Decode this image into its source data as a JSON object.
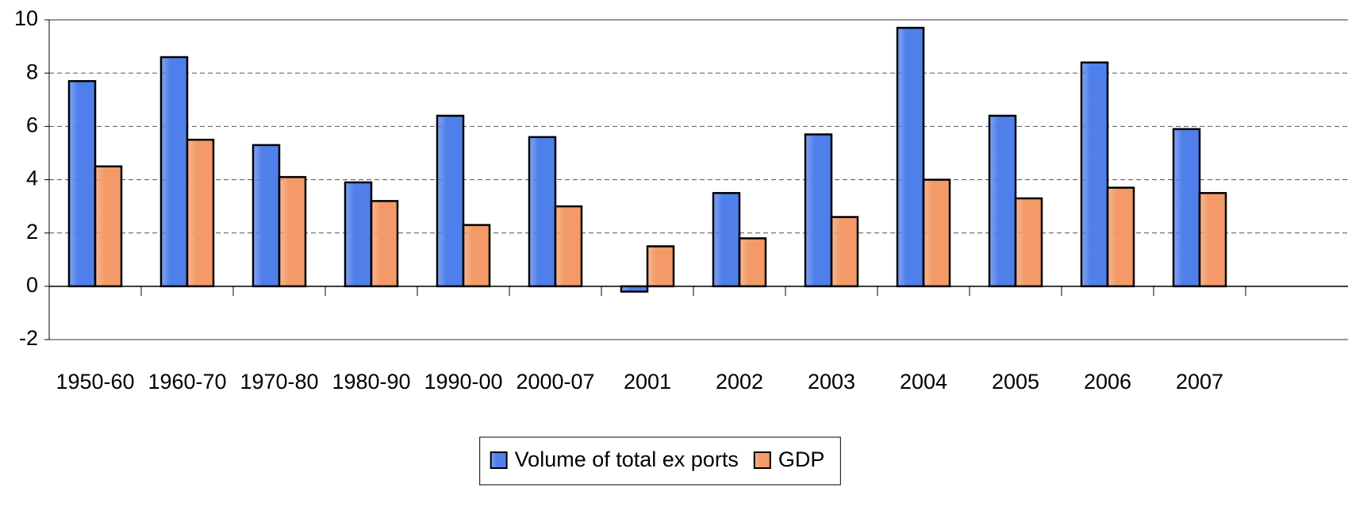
{
  "chart_data": {
    "type": "bar",
    "categories": [
      "1950-60",
      "1960-70",
      "1970-80",
      "1980-90",
      "1990-00",
      "2000-07",
      "2001",
      "2002",
      "2003",
      "2004",
      "2005",
      "2006",
      "2007"
    ],
    "series": [
      {
        "name": "Volume of total ex ports",
        "color": "#4f7fea",
        "values": [
          7.7,
          8.6,
          5.3,
          3.9,
          6.4,
          5.6,
          -0.2,
          3.5,
          5.7,
          9.7,
          6.4,
          8.4,
          5.9
        ]
      },
      {
        "name": "GDP",
        "color": "#f39a68",
        "values": [
          4.5,
          5.5,
          4.1,
          3.2,
          2.3,
          3.0,
          1.5,
          1.8,
          2.6,
          4.0,
          3.3,
          3.7,
          3.5
        ]
      }
    ],
    "ylim": [
      -2,
      10
    ],
    "yticks": [
      -2,
      0,
      2,
      4,
      6,
      8,
      10
    ],
    "grid": true,
    "legend": "bottom"
  }
}
